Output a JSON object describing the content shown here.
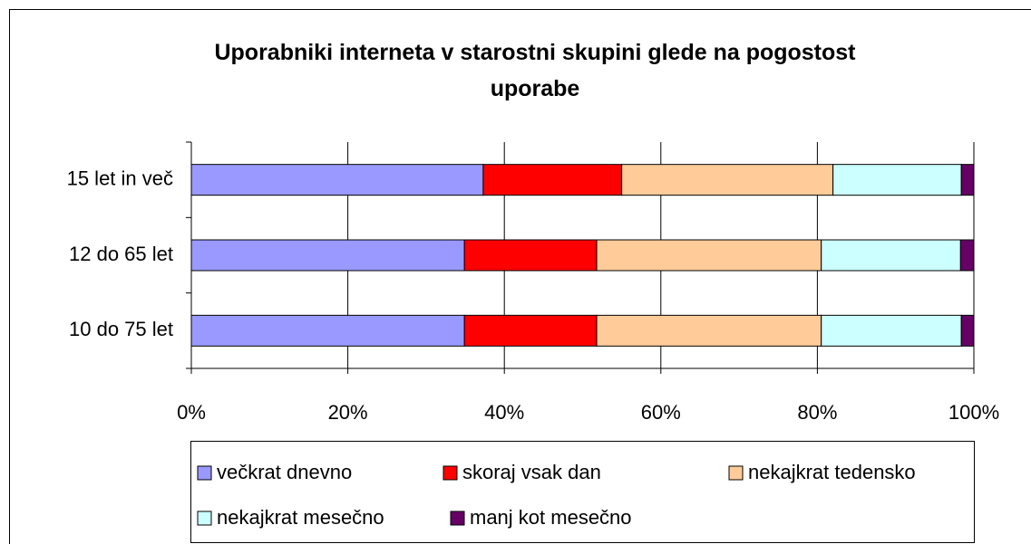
{
  "chart_data": {
    "type": "stacked_barh",
    "title": "Uporabniki interneta v starostni skupini glede na pogostost uporabe",
    "categories": [
      "15 let in več",
      "12 do 65 let",
      "10 do 75 let"
    ],
    "series": [
      {
        "name": "večkrat dnevno",
        "color": "#9999ff",
        "values": [
          37.3,
          34.9,
          34.9
        ]
      },
      {
        "name": "skoraj vsak dan",
        "color": "#ff0000",
        "values": [
          17.7,
          16.9,
          16.9
        ]
      },
      {
        "name": "nekajkrat tedensko",
        "color": "#ffcc99",
        "values": [
          27.0,
          28.7,
          28.7
        ]
      },
      {
        "name": "nekajkrat mesečno",
        "color": "#ccffff",
        "values": [
          16.4,
          17.8,
          17.9
        ]
      },
      {
        "name": "manj kot mesečno",
        "color": "#660066",
        "values": [
          1.6,
          1.7,
          1.6
        ]
      }
    ],
    "xlim": [
      0,
      100
    ],
    "xticks": [
      {
        "value": 0,
        "label": "0%"
      },
      {
        "value": 20,
        "label": "20%"
      },
      {
        "value": 40,
        "label": "40%"
      },
      {
        "value": 60,
        "label": "60%"
      },
      {
        "value": 80,
        "label": "80%"
      },
      {
        "value": 100,
        "label": "100%"
      }
    ],
    "grid": true
  }
}
